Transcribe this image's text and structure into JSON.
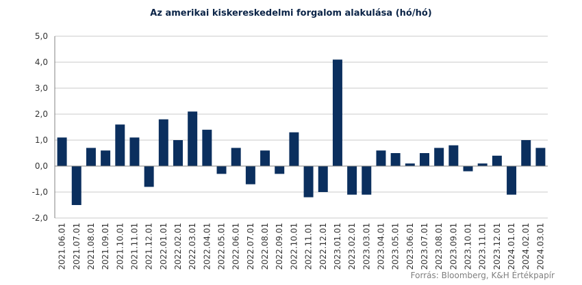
{
  "chart_data": {
    "type": "bar",
    "title": "Az amerikai kiskereskedelmi forgalom alakulása (hó/hó)",
    "xlabel": "",
    "ylabel": "",
    "ylim": [
      -2.0,
      5.0
    ],
    "ytick_step": 1.0,
    "ytick_labels": [
      "-2,0",
      "-1,0",
      "0,0",
      "1,0",
      "2,0",
      "3,0",
      "4,0",
      "5,0"
    ],
    "grid": true,
    "legend": "none",
    "bar_color": "#0b2f5e",
    "categories": [
      "2021.06.01",
      "2021.07.01",
      "2021.08.01",
      "2021.09.01",
      "2021.10.01",
      "2021.11.01",
      "2021.12.01",
      "2022.01.01",
      "2022.02.01",
      "2022.03.01",
      "2022.04.01",
      "2022.05.01",
      "2022.06.01",
      "2022.07.01",
      "2022.08.01",
      "2022.09.01",
      "2022.10.01",
      "2022.11.01",
      "2022.12.01",
      "2023.01.01",
      "2023.02.01",
      "2023.03.01",
      "2023.04.01",
      "2023.05.01",
      "2023.06.01",
      "2023.07.01",
      "2023.08.01",
      "2023.09.01",
      "2023.10.01",
      "2023.11.01",
      "2023.12.01",
      "2024.01.01",
      "2024.02.01",
      "2024.03.01"
    ],
    "values": [
      1.1,
      -1.5,
      0.7,
      0.6,
      1.6,
      1.1,
      -0.8,
      1.8,
      1.0,
      2.1,
      1.4,
      -0.3,
      0.7,
      -0.7,
      0.6,
      -0.3,
      1.3,
      -1.2,
      -1.0,
      4.1,
      -1.1,
      -1.1,
      0.6,
      0.5,
      0.1,
      0.5,
      0.7,
      0.8,
      -0.2,
      0.1,
      0.4,
      -1.1,
      1.0,
      0.7
    ]
  },
  "source_text": "Forrás: Bloomberg,  K&H Értékpapír"
}
